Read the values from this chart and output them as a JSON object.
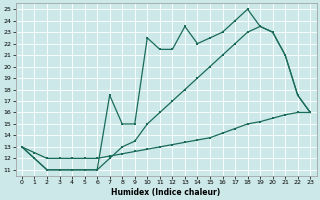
{
  "xlabel": "Humidex (Indice chaleur)",
  "background_color": "#cce8e8",
  "grid_color": "#ffffff",
  "line_color": "#1a6b5a",
  "xlim": [
    -0.5,
    23.5
  ],
  "ylim": [
    10.5,
    25.5
  ],
  "xticks": [
    0,
    1,
    2,
    3,
    4,
    5,
    6,
    7,
    8,
    9,
    10,
    11,
    12,
    13,
    14,
    15,
    16,
    17,
    18,
    19,
    20,
    21,
    22,
    23
  ],
  "yticks": [
    11,
    12,
    13,
    14,
    15,
    16,
    17,
    18,
    19,
    20,
    21,
    22,
    23,
    24,
    25
  ],
  "line_bottom_x": [
    0,
    1,
    2,
    3,
    4,
    5,
    6,
    7,
    8,
    9,
    10,
    11,
    12,
    13,
    14,
    15,
    16,
    17,
    18,
    19,
    20,
    21,
    22,
    23
  ],
  "line_bottom_y": [
    13,
    12.5,
    12,
    12,
    12,
    12,
    12,
    12.2,
    12.4,
    12.6,
    12.8,
    13,
    13.2,
    13.4,
    13.6,
    13.8,
    14.2,
    14.6,
    15,
    15.2,
    15.5,
    15.8,
    16,
    16
  ],
  "line_mid_x": [
    0,
    1,
    2,
    3,
    4,
    5,
    6,
    7,
    8,
    9,
    10,
    11,
    12,
    13,
    14,
    15,
    16,
    17,
    18,
    19,
    20,
    21,
    22,
    23
  ],
  "line_mid_y": [
    13,
    12,
    11,
    11,
    11,
    11,
    11,
    12,
    13,
    13.5,
    15,
    16,
    17,
    18,
    19,
    20,
    21,
    22,
    23,
    23.5,
    23,
    21,
    17.5,
    16
  ],
  "line_top_x": [
    0,
    1,
    2,
    3,
    4,
    5,
    6,
    7,
    8,
    9,
    10,
    11,
    12,
    13,
    14,
    15,
    16,
    17,
    18,
    19,
    20,
    21,
    22,
    23
  ],
  "line_top_y": [
    13,
    12,
    11,
    11,
    11,
    11,
    11,
    17.5,
    15,
    15,
    22.5,
    21.5,
    21.5,
    23.5,
    22,
    22.5,
    23,
    24,
    25,
    23.5,
    23,
    21,
    17.5,
    16
  ]
}
